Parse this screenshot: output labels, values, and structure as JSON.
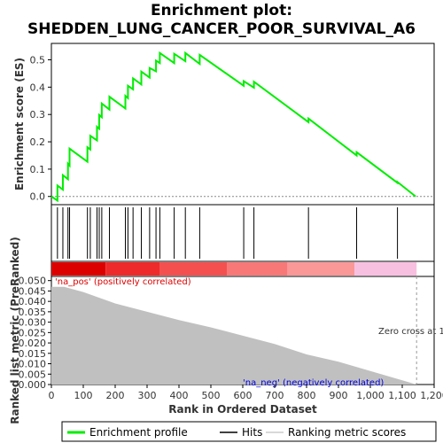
{
  "chart_data": {
    "type": "line",
    "title": "Enrichment plot:",
    "subtitle": "SHEDDEN_LUNG_CANCER_POOR_SURVIVAL_A6",
    "colors": {
      "enrichment_line": "#00ee00",
      "hits": "#000000",
      "metric_fill": "#c0c0c0",
      "pos_label": "#dd0000",
      "neg_label": "#0000dd",
      "legend_ranking_line": "#cccccc"
    },
    "x_ticks": [
      "0",
      "100",
      "200",
      "300",
      "400",
      "500",
      "600",
      "700",
      "800",
      "900",
      "1,000",
      "1,100",
      "1,200"
    ],
    "x_tick_values": [
      0,
      100,
      200,
      300,
      400,
      500,
      600,
      700,
      800,
      900,
      1000,
      1100,
      1200
    ],
    "xlim": [
      0,
      1200
    ],
    "xlabel": "Rank in Ordered Dataset",
    "top_panel": {
      "ylabel": "Enrichment score (ES)",
      "ylim": [
        -0.03,
        0.56
      ],
      "y_ticks": [
        "0.0",
        "0.1",
        "0.2",
        "0.3",
        "0.4",
        "0.5"
      ],
      "y_tick_values": [
        0.0,
        0.1,
        0.2,
        0.3,
        0.4,
        0.5
      ],
      "es_profile": {
        "x": [
          0,
          19,
          19,
          36,
          36,
          52,
          52,
          57,
          57,
          113,
          113,
          122,
          122,
          143,
          143,
          150,
          150,
          158,
          158,
          182,
          182,
          232,
          232,
          240,
          240,
          256,
          256,
          282,
          282,
          308,
          308,
          328,
          328,
          340,
          340,
          385,
          385,
          420,
          420,
          465,
          465,
          603,
          603,
          635,
          635,
          806,
          806,
          957,
          957,
          1085,
          1085,
          1142
        ],
        "y": [
          0.0,
          -0.015,
          0.04,
          0.025,
          0.078,
          0.063,
          0.12,
          0.113,
          0.175,
          0.127,
          0.18,
          0.172,
          0.222,
          0.205,
          0.255,
          0.248,
          0.298,
          0.29,
          0.34,
          0.318,
          0.365,
          0.322,
          0.368,
          0.36,
          0.405,
          0.392,
          0.432,
          0.41,
          0.457,
          0.435,
          0.47,
          0.458,
          0.497,
          0.488,
          0.525,
          0.488,
          0.522,
          0.495,
          0.525,
          0.485,
          0.518,
          0.405,
          0.422,
          0.398,
          0.42,
          0.272,
          0.285,
          0.15,
          0.162,
          0.05,
          0.053,
          0.0
        ]
      }
    },
    "hits": [
      19,
      36,
      52,
      57,
      113,
      122,
      143,
      150,
      158,
      182,
      232,
      240,
      256,
      282,
      308,
      328,
      340,
      385,
      420,
      465,
      603,
      635,
      806,
      957,
      1085
    ],
    "heatmap_bands": [
      {
        "from": 0,
        "to": 170,
        "color": "#dd0000"
      },
      {
        "from": 170,
        "to": 340,
        "color": "#ee2a2a"
      },
      {
        "from": 340,
        "to": 550,
        "color": "#f45050"
      },
      {
        "from": 550,
        "to": 740,
        "color": "#f87878"
      },
      {
        "from": 740,
        "to": 950,
        "color": "#fa9898"
      },
      {
        "from": 950,
        "to": 1145,
        "color": "#f8c0e0"
      }
    ],
    "bottom_panel": {
      "ylabel": "Ranked list metric (PreRanked)",
      "ylim": [
        0,
        0.052
      ],
      "y_ticks": [
        "0.000",
        "0.005",
        "0.010",
        "0.015",
        "0.020",
        "0.025",
        "0.030",
        "0.035",
        "0.040",
        "0.045",
        "0.050"
      ],
      "y_tick_values": [
        0.0,
        0.005,
        0.01,
        0.015,
        0.02,
        0.025,
        0.03,
        0.035,
        0.04,
        0.045,
        0.05
      ],
      "metric": {
        "x": [
          0,
          40,
          100,
          200,
          300,
          400,
          500,
          600,
          700,
          800,
          900,
          1000,
          1100,
          1145
        ],
        "y": [
          0.047,
          0.047,
          0.0445,
          0.039,
          0.035,
          0.031,
          0.0275,
          0.0235,
          0.0195,
          0.0145,
          0.011,
          0.0065,
          0.002,
          0.0
        ]
      },
      "zero_cross_rank": 1145,
      "zero_cross_label": "Zero cross at 1145",
      "pos_label": "'na_pos' (positively correlated)",
      "neg_label": "'na_neg' (negatively correlated)"
    },
    "legend": [
      "Enrichment profile",
      "Hits",
      "Ranking metric scores"
    ]
  }
}
